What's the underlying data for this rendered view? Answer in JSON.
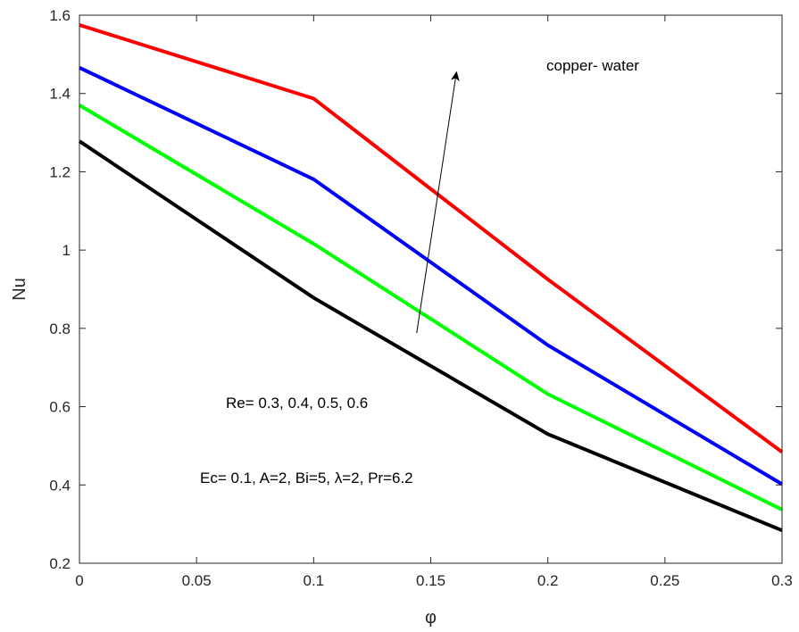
{
  "chart_data": {
    "type": "line",
    "xlabel": "φ",
    "ylabel": "Nu",
    "xlim": [
      0,
      0.3
    ],
    "ylim": [
      0.2,
      1.6
    ],
    "xticks": [
      0,
      0.05,
      0.1,
      0.15,
      0.2,
      0.25,
      0.3
    ],
    "xtick_labels": [
      "0",
      "0.05",
      "0.1",
      "0.15",
      "0.2",
      "0.25",
      "0.3"
    ],
    "yticks": [
      0.2,
      0.4,
      0.6,
      0.8,
      1.0,
      1.2,
      1.4,
      1.6
    ],
    "ytick_labels": [
      "0.2",
      "0.4",
      "0.6",
      "0.8",
      "1",
      "1.2",
      "1.4",
      "1.6"
    ],
    "grid": false,
    "x": [
      0,
      0.1,
      0.2,
      0.3
    ],
    "series": [
      {
        "values": [
          1.575,
          1.387,
          0.925,
          0.484
        ],
        "color": "#ff0000"
      },
      {
        "values": [
          1.466,
          1.181,
          0.757,
          0.402
        ],
        "color": "#0000ff"
      },
      {
        "values": [
          1.37,
          1.016,
          0.632,
          0.337
        ],
        "color": "#00ff00"
      },
      {
        "values": [
          1.278,
          0.878,
          0.53,
          0.284
        ],
        "color": "#000000"
      }
    ],
    "annotations": {
      "fluid": "copper- water",
      "re_values": "Re= 0.3, 0.4, 0.5, 0.6",
      "params": "Ec= 0.1, A=2, Bi=5, λ=2, Pr=6.2"
    },
    "arrow": {
      "from": [
        0.144,
        0.788
      ],
      "to": [
        0.161,
        1.455
      ]
    }
  }
}
